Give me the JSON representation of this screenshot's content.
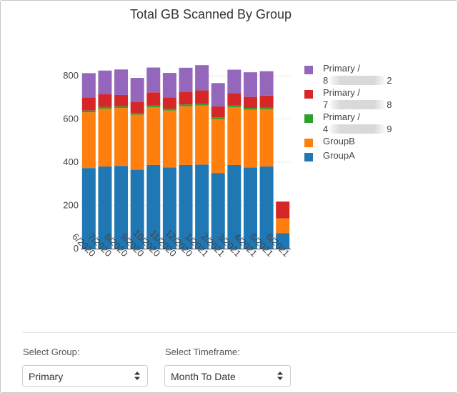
{
  "chart_data": {
    "type": "bar",
    "stacked": true,
    "title": "Total GB Scanned By Group",
    "xlabel": "",
    "ylabel": "",
    "ylim": [
      0,
      860
    ],
    "yticks": [
      0,
      200,
      400,
      600,
      800
    ],
    "categories": [
      "6/2020",
      "7/2020",
      "8/2020",
      "9/2020",
      "10/2020",
      "11/2020",
      "12/2020",
      "1/2021",
      "2/2021",
      "3/2021",
      "4/2021",
      "5/2021",
      "6/2021"
    ],
    "series": [
      {
        "name": "GroupA",
        "color": "#1f77b4",
        "values": [
          373,
          380,
          383,
          365,
          387,
          376,
          387,
          389,
          350,
          387,
          375,
          380,
          72
        ]
      },
      {
        "name": "GroupB",
        "color": "#ff7f0e",
        "values": [
          258,
          268,
          268,
          255,
          268,
          263,
          272,
          273,
          250,
          268,
          268,
          265,
          68
        ]
      },
      {
        "name": "Primary / 4 9",
        "color": "#2ca02c",
        "values": [
          8,
          8,
          8,
          8,
          8,
          8,
          8,
          8,
          8,
          8,
          8,
          8,
          0
        ]
      },
      {
        "name": "Primary / 7 8",
        "color": "#d62728",
        "values": [
          60,
          58,
          52,
          52,
          60,
          52,
          57,
          62,
          50,
          57,
          51,
          55,
          78
        ]
      },
      {
        "name": "Primary / 8 2",
        "color": "#9467bd",
        "values": [
          113,
          110,
          118,
          110,
          115,
          114,
          113,
          117,
          108,
          108,
          114,
          113,
          0
        ]
      }
    ],
    "legend": [
      {
        "prefix": "Primary /",
        "start": "8",
        "end": "2",
        "color": "#9467bd"
      },
      {
        "prefix": "Primary /",
        "start": "7",
        "end": "8",
        "color": "#d62728"
      },
      {
        "prefix": "Primary /",
        "start": "4",
        "end": "9",
        "color": "#2ca02c"
      },
      {
        "prefix": "GroupB",
        "color": "#ff7f0e"
      },
      {
        "prefix": "GroupA",
        "color": "#1f77b4"
      }
    ],
    "legend_position": "right"
  },
  "controls": {
    "group_label": "Select Group:",
    "group_value": "Primary",
    "timeframe_label": "Select Timeframe:",
    "timeframe_value": "Month To Date"
  }
}
